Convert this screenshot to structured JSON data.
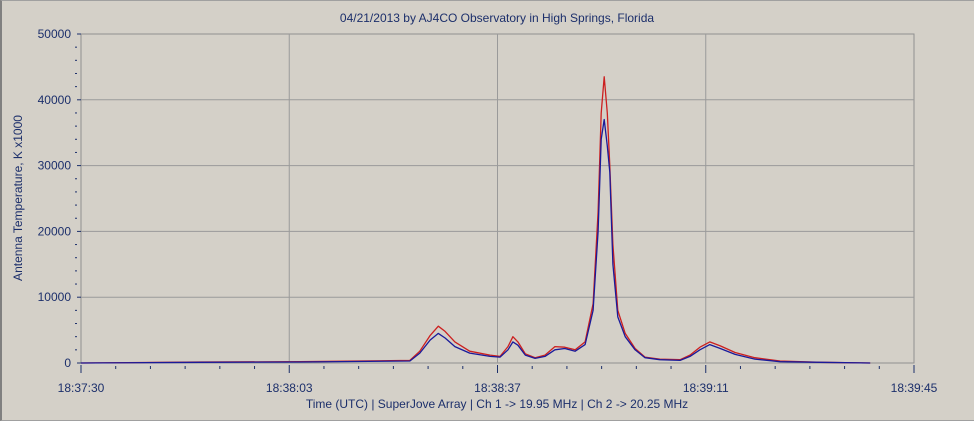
{
  "chart_data": {
    "type": "line",
    "title": "04/21/2013  by  AJ4CO Observatory  in  High Springs, Florida",
    "xlabel": "Time (UTC)  |  SuperJove Array  |  Ch 1 -> 19.95 MHz  |  Ch 2 -> 20.25 MHz",
    "ylabel": "Antenna Temperature, K x1000",
    "ylim": [
      0,
      50000
    ],
    "xlim_seconds": [
      0,
      135
    ],
    "yticks": [
      "0",
      "10000",
      "20000",
      "30000",
      "40000",
      "50000"
    ],
    "xticks": [
      {
        "t": 0,
        "label": "18:37:30"
      },
      {
        "t": 33.75,
        "label": "18:38:03"
      },
      {
        "t": 67.5,
        "label": "18:38:37"
      },
      {
        "t": 101.25,
        "label": "18:39:11"
      },
      {
        "t": 135,
        "label": "18:39:45"
      }
    ],
    "grid": true,
    "x_seconds": [
      0,
      19.3,
      35.5,
      53.3,
      54.9,
      56.6,
      57.9,
      59.0,
      60.6,
      63.0,
      66.3,
      67.9,
      69.2,
      70.0,
      70.8,
      72.0,
      73.6,
      75.2,
      76.8,
      78.4,
      80.1,
      81.7,
      83.0,
      83.8,
      84.3,
      84.8,
      85.3,
      85.7,
      86.2,
      87.0,
      88.2,
      89.8,
      91.4,
      93.8,
      97.1,
      98.7,
      100.3,
      101.9,
      103.6,
      106.0,
      109.2,
      113.3,
      119.8,
      127.9
    ],
    "series": [
      {
        "name": "Ch 1",
        "color": "#cc1f1f",
        "values": [
          0,
          150,
          200,
          400,
          1800,
          4200,
          5600,
          4800,
          3200,
          1800,
          1200,
          1000,
          2500,
          4000,
          3200,
          1400,
          800,
          1200,
          2500,
          2400,
          2000,
          3200,
          9000,
          23000,
          38000,
          43500,
          38000,
          30000,
          18000,
          8000,
          4500,
          2200,
          900,
          600,
          500,
          1200,
          2400,
          3200,
          2600,
          1600,
          800,
          300,
          100,
          0
        ]
      },
      {
        "name": "Ch 2",
        "color": "#1a1a9a",
        "values": [
          0,
          100,
          150,
          300,
          1500,
          3500,
          4500,
          3800,
          2500,
          1500,
          1000,
          900,
          2000,
          3200,
          2700,
          1200,
          700,
          1000,
          2000,
          2200,
          1800,
          2800,
          8000,
          20000,
          34000,
          37000,
          33000,
          29000,
          15000,
          7000,
          4000,
          2000,
          800,
          500,
          400,
          1000,
          2000,
          2800,
          2200,
          1300,
          600,
          200,
          100,
          0
        ]
      }
    ]
  }
}
